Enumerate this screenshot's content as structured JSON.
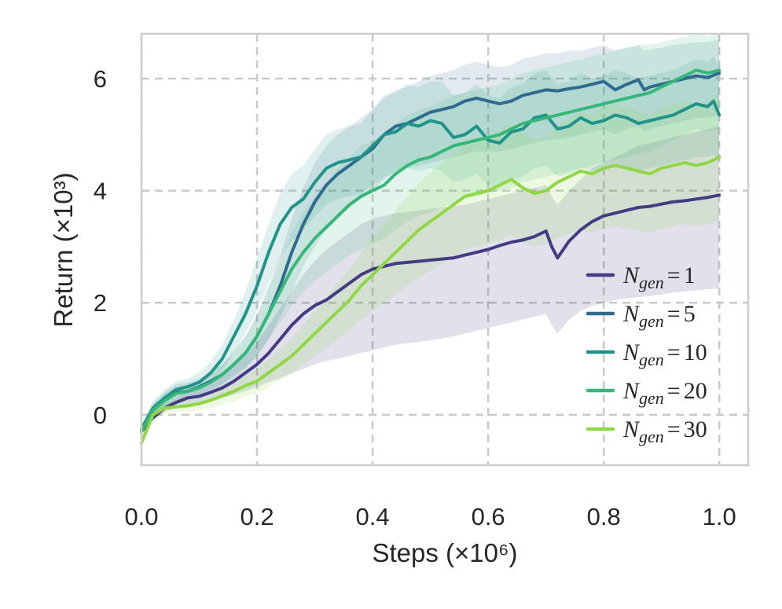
{
  "chart_data": {
    "type": "line",
    "xlabel": "Steps (×10⁶)",
    "ylabel": "Return (×10³)",
    "xlim": [
      0.0,
      1.05
    ],
    "ylim": [
      -0.9,
      6.8
    ],
    "xticks": [
      0.0,
      0.2,
      0.4,
      0.6,
      0.8,
      1.0
    ],
    "xtick_labels": [
      "0.0",
      "0.2",
      "0.4",
      "0.6",
      "0.8",
      "1.0"
    ],
    "yticks": [
      0,
      2,
      4,
      6
    ],
    "ytick_labels": [
      "0",
      "2",
      "4",
      "6"
    ],
    "grid": true,
    "legend_position": "lower-right",
    "series": [
      {
        "name": "N_gen = 1",
        "label_base": "N",
        "label_sub": "gen",
        "label_val": "1",
        "color": "#433c84",
        "x": [
          0,
          0.02,
          0.04,
          0.06,
          0.08,
          0.1,
          0.12,
          0.14,
          0.16,
          0.18,
          0.2,
          0.22,
          0.24,
          0.26,
          0.28,
          0.3,
          0.32,
          0.34,
          0.36,
          0.38,
          0.4,
          0.42,
          0.44,
          0.46,
          0.48,
          0.5,
          0.52,
          0.54,
          0.56,
          0.58,
          0.6,
          0.62,
          0.64,
          0.66,
          0.68,
          0.7,
          0.71,
          0.72,
          0.74,
          0.76,
          0.78,
          0.8,
          0.82,
          0.84,
          0.86,
          0.88,
          0.9,
          0.92,
          0.94,
          0.96,
          0.98,
          1.0
        ],
        "y": [
          -0.3,
          -0.05,
          0.12,
          0.22,
          0.3,
          0.33,
          0.4,
          0.48,
          0.6,
          0.75,
          0.9,
          1.1,
          1.35,
          1.6,
          1.8,
          1.95,
          2.05,
          2.2,
          2.35,
          2.5,
          2.6,
          2.65,
          2.7,
          2.72,
          2.74,
          2.76,
          2.78,
          2.8,
          2.85,
          2.9,
          2.95,
          3.02,
          3.08,
          3.12,
          3.18,
          3.28,
          3.0,
          2.8,
          3.1,
          3.3,
          3.45,
          3.55,
          3.6,
          3.65,
          3.7,
          3.72,
          3.76,
          3.8,
          3.82,
          3.85,
          3.88,
          3.92
        ],
        "band_lo": [
          -0.35,
          -0.1,
          0.05,
          0.12,
          0.16,
          0.2,
          0.24,
          0.3,
          0.36,
          0.42,
          0.5,
          0.58,
          0.66,
          0.74,
          0.82,
          0.9,
          0.96,
          1.0,
          1.05,
          1.1,
          1.15,
          1.2,
          1.25,
          1.28,
          1.3,
          1.33,
          1.36,
          1.4,
          1.45,
          1.5,
          1.55,
          1.6,
          1.65,
          1.7,
          1.75,
          1.8,
          1.6,
          1.45,
          1.7,
          1.85,
          1.95,
          2.0,
          2.05,
          2.08,
          2.1,
          2.12,
          2.15,
          2.18,
          2.2,
          2.22,
          2.24,
          2.25
        ],
        "band_hi": [
          -0.2,
          0.05,
          0.2,
          0.3,
          0.42,
          0.5,
          0.6,
          0.7,
          0.85,
          1.05,
          1.3,
          1.6,
          1.9,
          2.2,
          2.5,
          2.75,
          2.95,
          3.1,
          3.25,
          3.4,
          3.5,
          3.55,
          3.6,
          3.62,
          3.65,
          3.68,
          3.7,
          3.72,
          3.75,
          3.8,
          3.85,
          3.9,
          3.95,
          4.0,
          4.05,
          4.1,
          3.9,
          3.75,
          4.0,
          4.2,
          4.4,
          4.5,
          4.6,
          4.7,
          4.8,
          4.85,
          4.9,
          4.95,
          5.0,
          5.05,
          5.1,
          5.15
        ],
        "opacity": 0.16
      },
      {
        "name": "N_gen = 5",
        "label_base": "N",
        "label_sub": "gen",
        "label_val": "5",
        "color": "#2f6b8e",
        "x": [
          0,
          0.02,
          0.04,
          0.06,
          0.08,
          0.1,
          0.12,
          0.14,
          0.16,
          0.18,
          0.2,
          0.22,
          0.24,
          0.26,
          0.28,
          0.3,
          0.32,
          0.34,
          0.36,
          0.38,
          0.4,
          0.42,
          0.44,
          0.46,
          0.48,
          0.5,
          0.52,
          0.54,
          0.56,
          0.58,
          0.6,
          0.62,
          0.64,
          0.66,
          0.68,
          0.7,
          0.72,
          0.74,
          0.76,
          0.78,
          0.8,
          0.82,
          0.84,
          0.86,
          0.87,
          0.88,
          0.9,
          0.92,
          0.94,
          0.96,
          0.98,
          1.0
        ],
        "y": [
          -0.3,
          0.1,
          0.28,
          0.4,
          0.42,
          0.5,
          0.6,
          0.72,
          0.9,
          1.1,
          1.4,
          1.8,
          2.3,
          2.9,
          3.4,
          3.8,
          4.1,
          4.3,
          4.45,
          4.6,
          4.75,
          5.0,
          5.15,
          5.2,
          5.3,
          5.4,
          5.45,
          5.5,
          5.6,
          5.65,
          5.6,
          5.55,
          5.6,
          5.7,
          5.75,
          5.8,
          5.78,
          5.82,
          5.85,
          5.9,
          5.95,
          5.8,
          5.9,
          5.98,
          5.8,
          5.85,
          5.9,
          5.95,
          6.0,
          6.05,
          6.02,
          6.1
        ],
        "band_lo": [
          -0.35,
          0.0,
          0.15,
          0.25,
          0.3,
          0.35,
          0.45,
          0.55,
          0.7,
          0.85,
          1.05,
          1.35,
          1.75,
          2.2,
          2.65,
          3.0,
          3.3,
          3.5,
          3.7,
          3.85,
          4.0,
          4.2,
          4.35,
          4.4,
          4.45,
          4.5,
          4.55,
          4.6,
          4.65,
          4.7,
          4.7,
          4.7,
          4.75,
          4.8,
          4.85,
          4.9,
          4.92,
          4.95,
          5.0,
          5.05,
          5.1,
          5.0,
          5.1,
          5.15,
          5.05,
          5.1,
          5.15,
          5.2,
          5.25,
          5.3,
          5.3,
          5.35
        ],
        "band_hi": [
          -0.2,
          0.2,
          0.4,
          0.55,
          0.58,
          0.65,
          0.75,
          0.9,
          1.1,
          1.4,
          1.8,
          2.3,
          2.85,
          3.5,
          4.05,
          4.5,
          4.8,
          5.0,
          5.15,
          5.3,
          5.45,
          5.65,
          5.8,
          5.85,
          5.95,
          6.05,
          6.1,
          6.15,
          6.25,
          6.3,
          6.25,
          6.2,
          6.25,
          6.35,
          6.4,
          6.45,
          6.45,
          6.5,
          6.5,
          6.55,
          6.6,
          6.5,
          6.55,
          6.6,
          6.5,
          6.52,
          6.55,
          6.6,
          6.62,
          6.65,
          6.65,
          6.7
        ],
        "opacity": 0.14
      },
      {
        "name": "N_gen = 10",
        "label_base": "N",
        "label_sub": "gen",
        "label_val": "10",
        "color": "#20938b",
        "x": [
          0,
          0.02,
          0.04,
          0.06,
          0.08,
          0.1,
          0.12,
          0.14,
          0.16,
          0.18,
          0.2,
          0.22,
          0.24,
          0.26,
          0.28,
          0.3,
          0.32,
          0.34,
          0.36,
          0.38,
          0.4,
          0.42,
          0.44,
          0.46,
          0.48,
          0.5,
          0.52,
          0.54,
          0.56,
          0.58,
          0.6,
          0.62,
          0.64,
          0.66,
          0.68,
          0.7,
          0.72,
          0.74,
          0.76,
          0.78,
          0.8,
          0.82,
          0.84,
          0.86,
          0.88,
          0.9,
          0.92,
          0.94,
          0.96,
          0.98,
          0.99,
          1.0
        ],
        "y": [
          -0.25,
          0.12,
          0.3,
          0.45,
          0.5,
          0.58,
          0.75,
          1.0,
          1.4,
          1.8,
          2.3,
          2.9,
          3.4,
          3.7,
          3.85,
          4.15,
          4.4,
          4.5,
          4.55,
          4.6,
          4.8,
          5.0,
          5.05,
          5.2,
          5.15,
          5.25,
          5.2,
          4.95,
          5.0,
          5.15,
          4.9,
          4.85,
          5.05,
          5.1,
          5.3,
          5.35,
          5.1,
          5.15,
          5.3,
          5.2,
          5.25,
          5.35,
          5.3,
          5.2,
          5.25,
          5.3,
          5.35,
          5.45,
          5.55,
          5.5,
          5.6,
          5.35
        ],
        "band_lo": [
          -0.3,
          0.0,
          0.18,
          0.32,
          0.38,
          0.45,
          0.6,
          0.8,
          1.1,
          1.45,
          1.85,
          2.35,
          2.8,
          3.1,
          3.3,
          3.55,
          3.75,
          3.85,
          3.9,
          3.95,
          4.1,
          4.25,
          4.3,
          4.4,
          4.35,
          4.4,
          4.35,
          4.15,
          4.2,
          4.3,
          4.1,
          4.05,
          4.2,
          4.25,
          4.4,
          4.45,
          4.25,
          4.3,
          4.4,
          4.35,
          4.4,
          4.45,
          4.4,
          4.35,
          4.4,
          4.45,
          4.5,
          4.55,
          4.6,
          4.6,
          4.65,
          4.5
        ],
        "band_hi": [
          -0.15,
          0.25,
          0.45,
          0.6,
          0.65,
          0.75,
          0.95,
          1.25,
          1.7,
          2.2,
          2.8,
          3.4,
          3.95,
          4.3,
          4.45,
          4.75,
          5.0,
          5.1,
          5.15,
          5.2,
          5.45,
          5.7,
          5.75,
          5.9,
          5.85,
          5.95,
          5.95,
          5.7,
          5.75,
          5.9,
          5.7,
          5.65,
          5.85,
          5.9,
          6.1,
          6.15,
          5.9,
          5.95,
          6.1,
          6.0,
          6.05,
          6.15,
          6.1,
          6.0,
          6.05,
          6.1,
          6.15,
          6.25,
          6.35,
          6.3,
          6.4,
          6.2
        ],
        "opacity": 0.14
      },
      {
        "name": "N_gen = 20",
        "label_base": "N",
        "label_sub": "gen",
        "label_val": "20",
        "color": "#35b779",
        "x": [
          0,
          0.02,
          0.04,
          0.06,
          0.08,
          0.1,
          0.12,
          0.14,
          0.16,
          0.18,
          0.2,
          0.22,
          0.24,
          0.26,
          0.28,
          0.3,
          0.32,
          0.34,
          0.36,
          0.38,
          0.4,
          0.42,
          0.44,
          0.46,
          0.48,
          0.5,
          0.52,
          0.54,
          0.56,
          0.58,
          0.6,
          0.62,
          0.64,
          0.66,
          0.68,
          0.7,
          0.72,
          0.74,
          0.76,
          0.78,
          0.8,
          0.82,
          0.84,
          0.86,
          0.88,
          0.9,
          0.92,
          0.94,
          0.96,
          0.98,
          1.0
        ],
        "y": [
          -0.3,
          0.08,
          0.25,
          0.38,
          0.42,
          0.48,
          0.58,
          0.72,
          0.9,
          1.1,
          1.4,
          1.8,
          2.2,
          2.6,
          2.9,
          3.15,
          3.35,
          3.55,
          3.75,
          3.9,
          4.0,
          4.1,
          4.3,
          4.45,
          4.55,
          4.6,
          4.7,
          4.8,
          4.85,
          4.9,
          4.95,
          5.0,
          5.1,
          5.2,
          5.25,
          5.3,
          5.35,
          5.4,
          5.45,
          5.5,
          5.55,
          5.6,
          5.65,
          5.7,
          5.75,
          5.85,
          5.95,
          6.05,
          6.15,
          6.1,
          6.15
        ],
        "band_lo": [
          -0.35,
          -0.05,
          0.12,
          0.25,
          0.3,
          0.35,
          0.42,
          0.52,
          0.65,
          0.82,
          1.05,
          1.35,
          1.65,
          1.95,
          2.2,
          2.4,
          2.55,
          2.7,
          2.85,
          2.95,
          3.05,
          3.15,
          3.3,
          3.45,
          3.55,
          3.6,
          3.7,
          3.78,
          3.85,
          3.9,
          3.95,
          4.0,
          4.05,
          4.15,
          4.2,
          4.25,
          4.3,
          4.35,
          4.4,
          4.45,
          4.5,
          4.55,
          4.6,
          4.65,
          4.7,
          4.8,
          4.9,
          5.0,
          5.1,
          5.05,
          5.1
        ],
        "band_hi": [
          -0.2,
          0.2,
          0.38,
          0.5,
          0.55,
          0.62,
          0.75,
          0.92,
          1.15,
          1.4,
          1.75,
          2.25,
          2.75,
          3.25,
          3.6,
          3.9,
          4.15,
          4.4,
          4.6,
          4.8,
          4.9,
          5.0,
          5.2,
          5.35,
          5.45,
          5.5,
          5.6,
          5.7,
          5.75,
          5.8,
          5.85,
          5.9,
          6.0,
          6.1,
          6.15,
          6.2,
          6.25,
          6.3,
          6.35,
          6.4,
          6.45,
          6.5,
          6.55,
          6.6,
          6.6,
          6.65,
          6.7,
          6.75,
          6.8,
          6.75,
          6.8
        ],
        "opacity": 0.14
      },
      {
        "name": "N_gen = 30",
        "label_base": "N",
        "label_sub": "gen",
        "label_val": "30",
        "color": "#8fd744",
        "x": [
          0,
          0.02,
          0.04,
          0.06,
          0.08,
          0.1,
          0.12,
          0.14,
          0.16,
          0.18,
          0.2,
          0.22,
          0.24,
          0.26,
          0.28,
          0.3,
          0.32,
          0.34,
          0.36,
          0.38,
          0.4,
          0.42,
          0.44,
          0.46,
          0.48,
          0.5,
          0.52,
          0.54,
          0.56,
          0.58,
          0.6,
          0.62,
          0.64,
          0.66,
          0.68,
          0.7,
          0.72,
          0.74,
          0.76,
          0.78,
          0.8,
          0.82,
          0.84,
          0.86,
          0.88,
          0.9,
          0.92,
          0.94,
          0.96,
          0.98,
          1.0
        ],
        "y": [
          -0.5,
          0.0,
          0.12,
          0.14,
          0.16,
          0.2,
          0.26,
          0.34,
          0.42,
          0.52,
          0.6,
          0.75,
          0.9,
          1.05,
          1.25,
          1.45,
          1.65,
          1.85,
          2.05,
          2.3,
          2.5,
          2.7,
          2.9,
          3.1,
          3.3,
          3.45,
          3.6,
          3.75,
          3.9,
          3.95,
          4.0,
          4.1,
          4.2,
          4.05,
          3.95,
          4.0,
          4.15,
          4.25,
          4.35,
          4.3,
          4.4,
          4.45,
          4.4,
          4.35,
          4.3,
          4.4,
          4.45,
          4.5,
          4.45,
          4.5,
          4.6
        ],
        "band_lo": [
          -0.55,
          -0.1,
          0.02,
          0.05,
          0.06,
          0.08,
          0.12,
          0.18,
          0.24,
          0.32,
          0.38,
          0.5,
          0.62,
          0.75,
          0.9,
          1.05,
          1.2,
          1.35,
          1.5,
          1.7,
          1.85,
          2.0,
          2.15,
          2.3,
          2.45,
          2.58,
          2.7,
          2.82,
          2.95,
          3.0,
          3.05,
          3.12,
          3.2,
          3.08,
          3.0,
          3.05,
          3.15,
          3.22,
          3.3,
          3.25,
          3.32,
          3.36,
          3.32,
          3.28,
          3.25,
          3.32,
          3.36,
          3.4,
          3.36,
          3.4,
          3.48
        ],
        "band_hi": [
          -0.4,
          0.1,
          0.22,
          0.24,
          0.27,
          0.32,
          0.4,
          0.5,
          0.6,
          0.72,
          0.82,
          1.0,
          1.18,
          1.35,
          1.6,
          1.85,
          2.1,
          2.35,
          2.6,
          2.9,
          3.15,
          3.4,
          3.65,
          3.9,
          4.15,
          4.32,
          4.5,
          4.68,
          4.85,
          4.9,
          4.95,
          5.08,
          5.2,
          5.02,
          4.9,
          4.95,
          5.15,
          5.28,
          5.4,
          5.35,
          5.48,
          5.54,
          5.48,
          5.42,
          5.35,
          5.48,
          5.54,
          5.6,
          5.54,
          5.6,
          5.72
        ],
        "opacity": 0.16
      }
    ]
  }
}
